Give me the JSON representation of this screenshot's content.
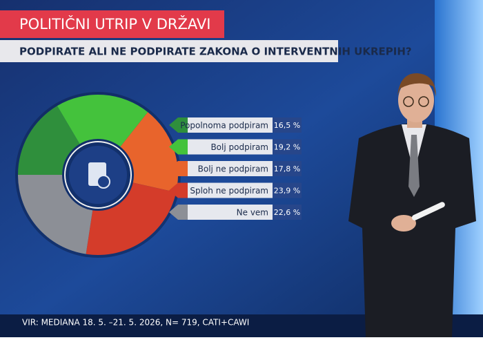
{
  "chart_data": {
    "type": "pie",
    "title": "POLITIČNI UTRIP V DRŽAVI",
    "subtitle": "PODPIRATE ALI NE PODPIRATE ZAKONA O INTERVENTNIH UKREPIH?",
    "source": "VIR: MEDIANA 18. 5. –21. 5. 2026, N= 719, CATI+CAWI",
    "categories": [
      "Popolnoma podpiram",
      "Bolj podpiram",
      "Bolj ne podpiram",
      "Sploh ne podpiram",
      "Ne vem"
    ],
    "values": [
      16.5,
      19.2,
      17.8,
      23.9,
      22.6
    ],
    "value_labels": [
      "16,5 %",
      "19,2 %",
      "17,8 %",
      "23,9 %",
      "22,6 %"
    ],
    "colors": [
      "#2f8f3c",
      "#44c23c",
      "#e8642c",
      "#d43c2a",
      "#8c8f96"
    ]
  }
}
